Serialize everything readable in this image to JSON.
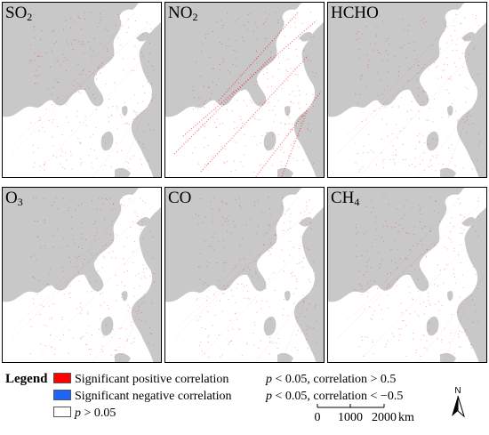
{
  "panels": [
    {
      "label_main": "SO",
      "label_sub": "2"
    },
    {
      "label_main": "NO",
      "label_sub": "2"
    },
    {
      "label_main": "HCHO",
      "label_sub": ""
    },
    {
      "label_main": "O",
      "label_sub": "3"
    },
    {
      "label_main": "CO",
      "label_sub": ""
    },
    {
      "label_main": "CH",
      "label_sub": "4"
    }
  ],
  "legend": {
    "title": "Legend",
    "items": [
      {
        "name": "Significant positive correlation",
        "p": "p",
        "condition": " < 0.05, correlation > 0.5",
        "color": "#ff0000"
      },
      {
        "name": "Significant negative correlation",
        "p": "p",
        "condition": " < 0.05, correlation < −0.5",
        "color": "#1e64ff"
      },
      {
        "name": "",
        "p": "p",
        "condition": " > 0.05",
        "color": "#ffffff"
      }
    ]
  },
  "scale": {
    "ticks": [
      "0",
      "1000",
      "2000"
    ],
    "unit": "km"
  },
  "north": {
    "label": "N"
  },
  "colors": {
    "land": "#c8c8c8",
    "sea": "#ffffff",
    "positive": "#ff0000",
    "negative": "#1e64ff"
  }
}
